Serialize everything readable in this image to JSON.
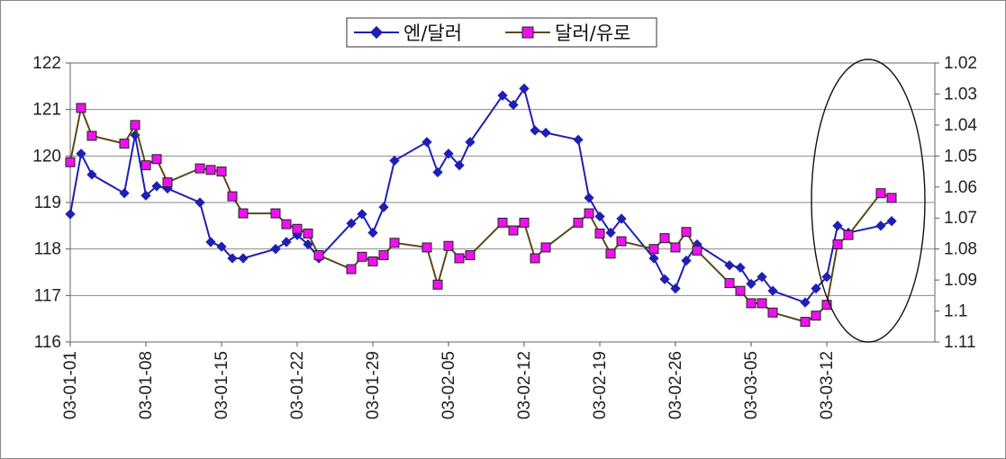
{
  "chart_data": {
    "type": "line",
    "title": "",
    "xlabel": "",
    "ylabel": "",
    "x_tick_labels": [
      "03-01-01",
      "03-01-08",
      "03-01-15",
      "03-01-22",
      "03-01-29",
      "03-02-05",
      "03-02-12",
      "03-02-19",
      "03-02-26",
      "03-03-05",
      "03-03-12"
    ],
    "y_left": {
      "ylim": [
        116,
        122
      ],
      "ticks": [
        "116",
        "117",
        "118",
        "119",
        "120",
        "121",
        "122"
      ]
    },
    "y_right": {
      "ylim": [
        1.11,
        1.02
      ],
      "inverted": true,
      "ticks": [
        "1.02",
        "1.03",
        "1.04",
        "1.05",
        "1.06",
        "1.07",
        "1.08",
        "1.09",
        "1.1",
        "1.11"
      ]
    },
    "grid": true,
    "legend_position": "top-center",
    "annotation": "ellipse highlighting the most recent period (around 03-03-12)",
    "series": [
      {
        "name": "엔/달러",
        "axis": "left",
        "color": "#1f1fb4",
        "marker": "diamond",
        "points": [
          [
            "03-01-01",
            118.75
          ],
          [
            "03-01-02",
            120.05
          ],
          [
            "03-01-03",
            119.6
          ],
          [
            "03-01-06",
            119.2
          ],
          [
            "03-01-07",
            120.45
          ],
          [
            "03-01-08",
            119.15
          ],
          [
            "03-01-09",
            119.35
          ],
          [
            "03-01-10",
            119.3
          ],
          [
            "03-01-13",
            119.0
          ],
          [
            "03-01-14",
            118.15
          ],
          [
            "03-01-15",
            118.05
          ],
          [
            "03-01-16",
            117.8
          ],
          [
            "03-01-17",
            117.8
          ],
          [
            "03-01-20",
            118.0
          ],
          [
            "03-01-21",
            118.15
          ],
          [
            "03-01-22",
            118.3
          ],
          [
            "03-01-23",
            118.1
          ],
          [
            "03-01-24",
            117.8
          ],
          [
            "03-01-27",
            118.55
          ],
          [
            "03-01-28",
            118.75
          ],
          [
            "03-01-29",
            118.35
          ],
          [
            "03-01-30",
            118.9
          ],
          [
            "03-01-31",
            119.9
          ],
          [
            "03-02-03",
            120.3
          ],
          [
            "03-02-04",
            119.65
          ],
          [
            "03-02-05",
            120.05
          ],
          [
            "03-02-06",
            119.8
          ],
          [
            "03-02-07",
            120.3
          ],
          [
            "03-02-10",
            121.3
          ],
          [
            "03-02-11",
            121.1
          ],
          [
            "03-02-12",
            121.45
          ],
          [
            "03-02-13",
            120.55
          ],
          [
            "03-02-14",
            120.5
          ],
          [
            "03-02-17",
            120.35
          ],
          [
            "03-02-18",
            119.1
          ],
          [
            "03-02-19",
            118.7
          ],
          [
            "03-02-20",
            118.35
          ],
          [
            "03-02-21",
            118.65
          ],
          [
            "03-02-24",
            117.8
          ],
          [
            "03-02-25",
            117.35
          ],
          [
            "03-02-26",
            117.15
          ],
          [
            "03-02-27",
            117.75
          ],
          [
            "03-02-28",
            118.1
          ],
          [
            "03-03-03",
            117.65
          ],
          [
            "03-03-04",
            117.6
          ],
          [
            "03-03-05",
            117.25
          ],
          [
            "03-03-06",
            117.4
          ],
          [
            "03-03-07",
            117.1
          ],
          [
            "03-03-10",
            116.85
          ],
          [
            "03-03-11",
            117.15
          ],
          [
            "03-03-12",
            117.4
          ],
          [
            "03-03-13",
            118.5
          ],
          [
            "03-03-14",
            118.35
          ],
          [
            "03-03-17",
            118.5
          ],
          [
            "03-03-18",
            118.6
          ]
        ]
      },
      {
        "name": "달러/유로",
        "axis": "right",
        "color": "#5a4a1a",
        "marker_color": "#ee11ee",
        "marker": "square",
        "points": [
          [
            "03-01-01",
            1.052
          ],
          [
            "03-01-02",
            1.0345
          ],
          [
            "03-01-03",
            1.0435
          ],
          [
            "03-01-06",
            1.046
          ],
          [
            "03-01-07",
            1.04
          ],
          [
            "03-01-08",
            1.053
          ],
          [
            "03-01-09",
            1.051
          ],
          [
            "03-01-10",
            1.0585
          ],
          [
            "03-01-13",
            1.054
          ],
          [
            "03-01-14",
            1.0545
          ],
          [
            "03-01-15",
            1.055
          ],
          [
            "03-01-16",
            1.063
          ],
          [
            "03-01-17",
            1.0685
          ],
          [
            "03-01-20",
            1.0685
          ],
          [
            "03-01-21",
            1.072
          ],
          [
            "03-01-22",
            1.0735
          ],
          [
            "03-01-23",
            1.075
          ],
          [
            "03-01-24",
            1.082
          ],
          [
            "03-01-27",
            1.0865
          ],
          [
            "03-01-28",
            1.0825
          ],
          [
            "03-01-29",
            1.084
          ],
          [
            "03-01-30",
            1.082
          ],
          [
            "03-01-31",
            1.078
          ],
          [
            "03-02-03",
            1.0795
          ],
          [
            "03-02-04",
            1.0915
          ],
          [
            "03-02-05",
            1.079
          ],
          [
            "03-02-06",
            1.083
          ],
          [
            "03-02-07",
            1.082
          ],
          [
            "03-02-10",
            1.0715
          ],
          [
            "03-02-11",
            1.074
          ],
          [
            "03-02-12",
            1.0715
          ],
          [
            "03-02-13",
            1.083
          ],
          [
            "03-02-14",
            1.0795
          ],
          [
            "03-02-17",
            1.0715
          ],
          [
            "03-02-18",
            1.0685
          ],
          [
            "03-02-19",
            1.075
          ],
          [
            "03-02-20",
            1.0815
          ],
          [
            "03-02-21",
            1.0775
          ],
          [
            "03-02-24",
            1.08
          ],
          [
            "03-02-25",
            1.0765
          ],
          [
            "03-02-26",
            1.0795
          ],
          [
            "03-02-27",
            1.0745
          ],
          [
            "03-02-28",
            1.0805
          ],
          [
            "03-03-03",
            1.091
          ],
          [
            "03-03-04",
            1.0935
          ],
          [
            "03-03-05",
            1.0975
          ],
          [
            "03-03-06",
            1.0975
          ],
          [
            "03-03-07",
            1.1005
          ],
          [
            "03-03-10",
            1.1035
          ],
          [
            "03-03-11",
            1.1015
          ],
          [
            "03-03-12",
            1.098
          ],
          [
            "03-03-13",
            1.0785
          ],
          [
            "03-03-14",
            1.0755
          ],
          [
            "03-03-17",
            1.062
          ],
          [
            "03-03-18",
            1.0635
          ]
        ]
      }
    ]
  }
}
